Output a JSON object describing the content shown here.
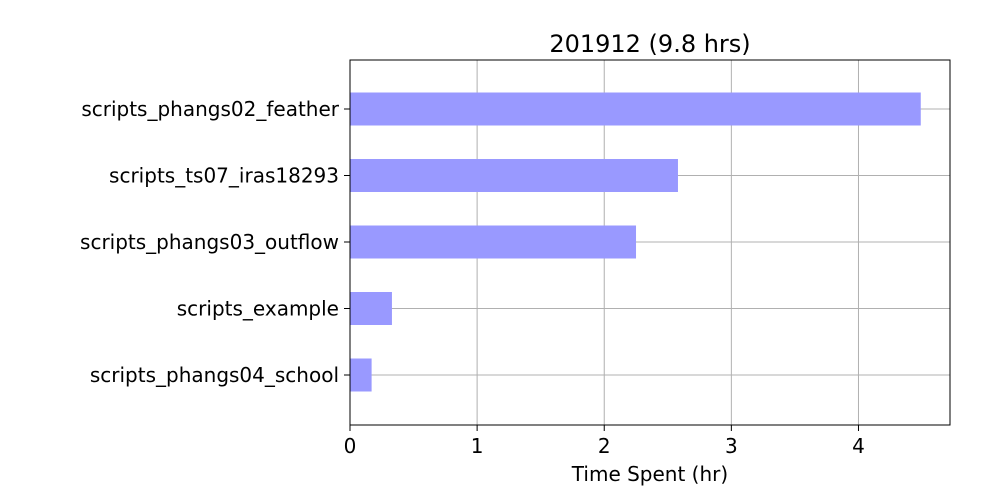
{
  "chart_data": {
    "type": "bar",
    "orientation": "horizontal",
    "title": "201912 (9.8 hrs)",
    "xlabel": "Time Spent (hr)",
    "ylabel": "",
    "xlim": [
      0,
      4.72
    ],
    "xticks": [
      0,
      1,
      2,
      3,
      4
    ],
    "grid": true,
    "categories": [
      "scripts_phangs02_feather",
      "scripts_ts07_iras18293",
      "scripts_phangs03_outflow",
      "scripts_example",
      "scripts_phangs04_school"
    ],
    "values": [
      4.49,
      2.58,
      2.25,
      0.33,
      0.17
    ],
    "bar_color": "#9999ff",
    "grid_color": "#b0b0b0"
  }
}
